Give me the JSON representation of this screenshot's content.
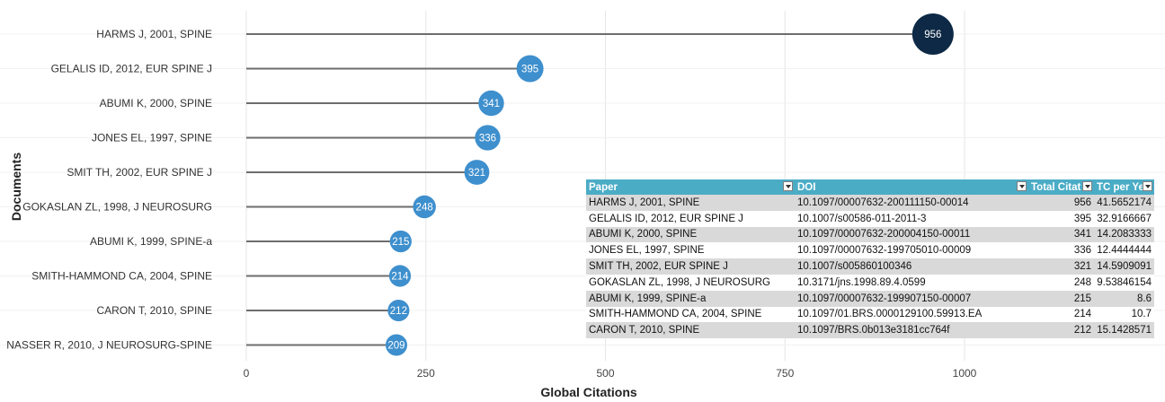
{
  "chart_data": {
    "type": "lollipop",
    "xlabel": "Global Citations",
    "ylabel": "Documents",
    "xlim": [
      0,
      1000
    ],
    "x_ticks": [
      0,
      250,
      500,
      750,
      1000
    ],
    "grid": true,
    "categories": [
      "HARMS J, 2001, SPINE",
      "GELALIS ID, 2012, EUR SPINE J",
      "ABUMI K, 2000, SPINE",
      "JONES EL, 1997, SPINE",
      "SMIT TH, 2002, EUR SPINE J",
      "GOKASLAN ZL, 1998, J NEUROSURG",
      "ABUMI K, 1999, SPINE-a",
      "SMITH-HAMMOND CA, 2004, SPINE",
      "CARON T, 2010, SPINE",
      "NASSER R, 2010, J NEUROSURG-SPINE"
    ],
    "values": [
      956,
      395,
      341,
      336,
      321,
      248,
      215,
      214,
      212,
      209
    ],
    "value_labels": [
      "956",
      "395",
      "341",
      "336",
      "321",
      "248",
      "215",
      "214",
      "212",
      "209"
    ],
    "colors": {
      "max": "#0d2945",
      "default": "#3e8fcd",
      "stem": "#6d6d6d",
      "grid": "#e6e6e6"
    }
  },
  "table": {
    "headers": [
      "Paper",
      "DOI",
      "Total Citat",
      "TC per Yea"
    ],
    "rows": [
      [
        "HARMS J, 2001, SPINE",
        "10.1097/00007632-200111150-00014",
        "956",
        "41.5652174"
      ],
      [
        "GELALIS ID, 2012, EUR SPINE J",
        "10.1007/s00586-011-2011-3",
        "395",
        "32.9166667"
      ],
      [
        "ABUMI K, 2000, SPINE",
        "10.1097/00007632-200004150-00011",
        "341",
        "14.2083333"
      ],
      [
        "JONES EL, 1997, SPINE",
        "10.1097/00007632-199705010-00009",
        "336",
        "12.4444444"
      ],
      [
        "SMIT TH, 2002, EUR SPINE J",
        "10.1007/s005860100346",
        "321",
        "14.5909091"
      ],
      [
        "GOKASLAN ZL, 1998, J NEUROSURG",
        "10.3171/jns.1998.89.4.0599",
        "248",
        "9.53846154"
      ],
      [
        "ABUMI K, 1999, SPINE-a",
        "10.1097/00007632-199907150-00007",
        "215",
        "8.6"
      ],
      [
        "SMITH-HAMMOND CA, 2004, SPINE",
        "10.1097/01.BRS.0000129100.59913.EA",
        "214",
        "10.7"
      ],
      [
        "CARON T, 2010, SPINE",
        "10.1097/BRS.0b013e3181cc764f",
        "212",
        "15.1428571"
      ]
    ],
    "header_color": "#4bacc6"
  }
}
